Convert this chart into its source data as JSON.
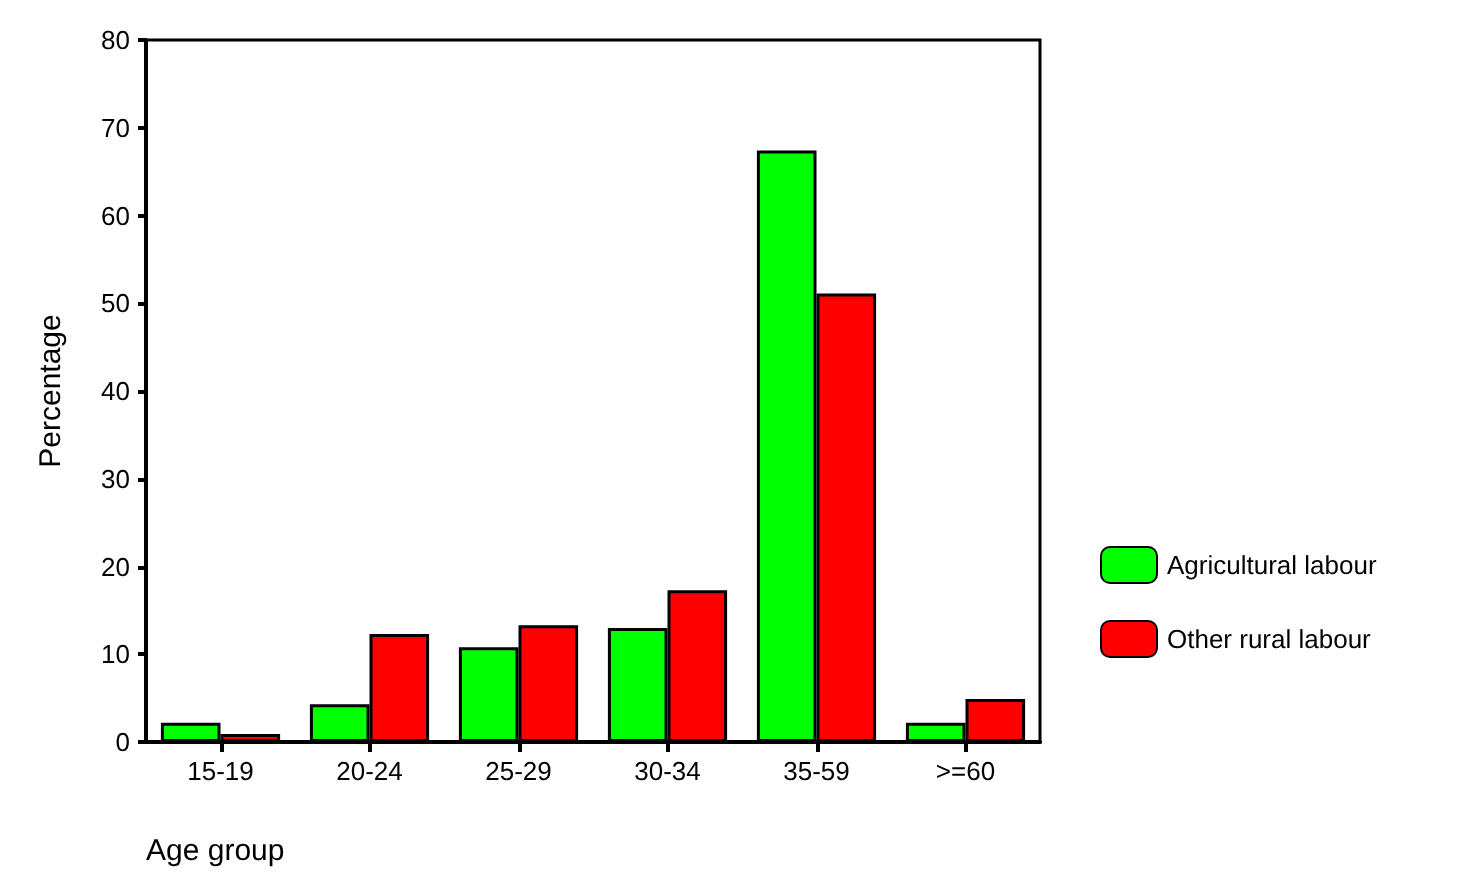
{
  "chart_data": {
    "type": "bar",
    "xlabel": "Age group",
    "ylabel": "Percentage",
    "categories": [
      "15-19",
      "20-24",
      "25-29",
      "30-34",
      "35-59",
      ">=60"
    ],
    "series": [
      {
        "name": "Agricultural labour",
        "color": "#00ff00",
        "values": [
          2.2,
          4.3,
          10.8,
          13.0,
          67.4,
          2.2
        ]
      },
      {
        "name": "Other rural labour",
        "color": "#ff0000",
        "values": [
          0.9,
          12.3,
          13.3,
          17.3,
          51.1,
          4.9
        ]
      }
    ],
    "ylim": [
      0,
      80
    ],
    "yticks": [
      0,
      10,
      20,
      30,
      40,
      50,
      60,
      70,
      80
    ],
    "grid": false,
    "legend": "right"
  }
}
